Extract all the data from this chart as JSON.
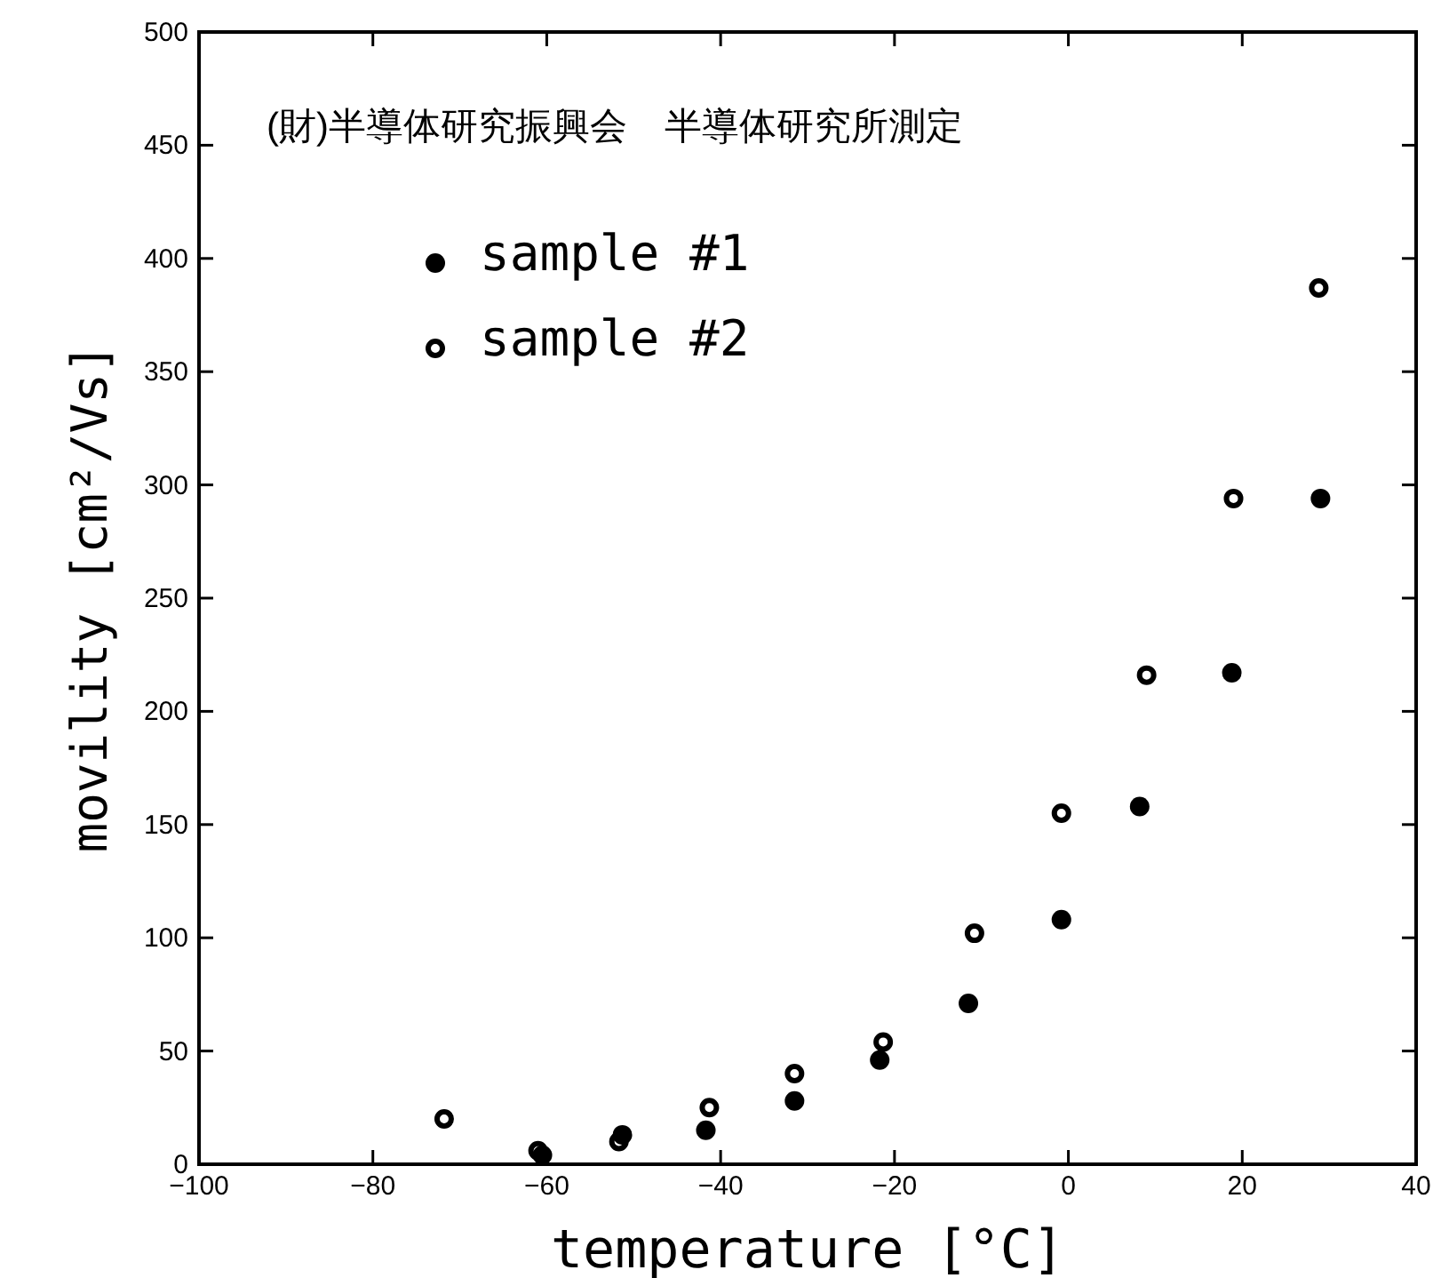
{
  "chart_data": {
    "type": "scatter",
    "xlabel": "temperature [°C]",
    "ylabel": "movility [cm²/Vs]",
    "annotations": [
      "(財)半導体研究振興会　半導体研究所測定"
    ],
    "xlim": [
      -100,
      40
    ],
    "xticks": [
      -100,
      -80,
      -60,
      -40,
      -20,
      0,
      20,
      40
    ],
    "ylim": [
      0,
      500
    ],
    "yticks": [
      0,
      50,
      100,
      150,
      200,
      250,
      300,
      350,
      400,
      450,
      500
    ],
    "grid": false,
    "legend": "top left",
    "marker": "circle",
    "series": [
      {
        "name": "sample #1",
        "color": "#000000",
        "x": [
          -60.5,
          -51.3,
          -41.7,
          -31.5,
          -21.7,
          -11.5,
          -0.8,
          8.2,
          18.8,
          29
        ],
        "values": [
          4,
          13,
          15,
          28,
          46,
          71,
          108,
          158,
          217,
          294
        ]
      },
      {
        "name": "sample #2",
        "color": "#000000",
        "x": [
          -71.8,
          -61,
          -51.7,
          -41.3,
          -31.5,
          -21.3,
          -10.8,
          -0.8,
          9,
          19,
          28.8
        ],
        "values": [
          20,
          6,
          10,
          25,
          40,
          54,
          102,
          155,
          216,
          294,
          387
        ]
      }
    ]
  }
}
